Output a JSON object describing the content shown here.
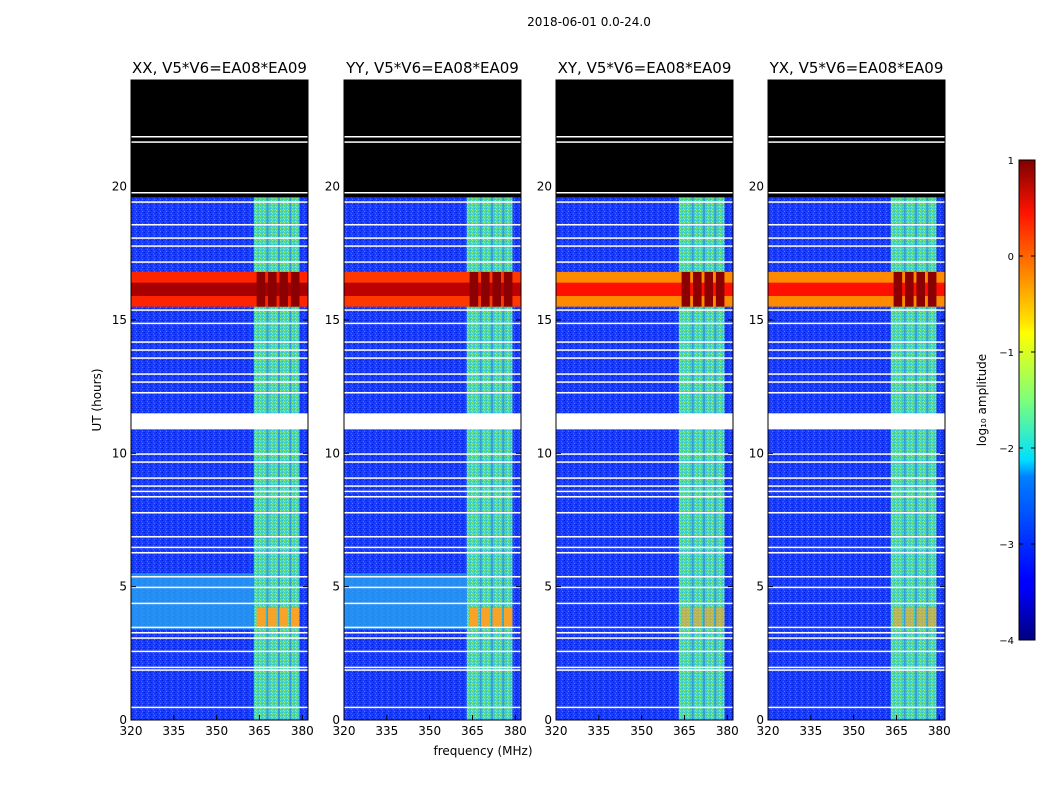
{
  "chart_data": {
    "type": "heatmap",
    "title": "2018-06-01 0.0-24.0",
    "xlabel": "frequency (MHz)",
    "ylabel": "UT (hours)",
    "xlim": [
      320,
      382
    ],
    "ylim": [
      0,
      24
    ],
    "xticks": [
      320,
      335,
      350,
      365,
      380
    ],
    "yticks": [
      0,
      5,
      10,
      15,
      20
    ],
    "colorbar": {
      "label": "log₁₀ amplitude",
      "vmin": -4,
      "vmax": 1,
      "ticks": [
        1,
        0,
        -1,
        -2,
        -3,
        -4
      ],
      "tick_labels": [
        "1",
        "0",
        "−1",
        "−2",
        "−3",
        "−4"
      ],
      "colormap": "jet"
    },
    "panels": [
      {
        "title": "XX, V5*V6=EA08*EA09",
        "pol": "XX",
        "rfi_band_log_amp": 0.8
      },
      {
        "title": "YY, V5*V6=EA08*EA09",
        "pol": "YY",
        "rfi_band_log_amp": 0.7
      },
      {
        "title": "XY, V5*V6=EA08*EA09",
        "pol": "XY",
        "rfi_band_log_amp": 0.3
      },
      {
        "title": "YX, V5*V6=EA08*EA09",
        "pol": "YX",
        "rfi_band_log_amp": 0.3
      }
    ],
    "features": {
      "no_data_hours": [
        19.6,
        24
      ],
      "high_amplitude_band_hours": [
        15.5,
        16.8
      ],
      "rfi_channel_range_MHz": [
        363,
        379
      ],
      "flagged_gap_hours": [
        10.9,
        11.5
      ],
      "background_log_amp": -3
    }
  }
}
